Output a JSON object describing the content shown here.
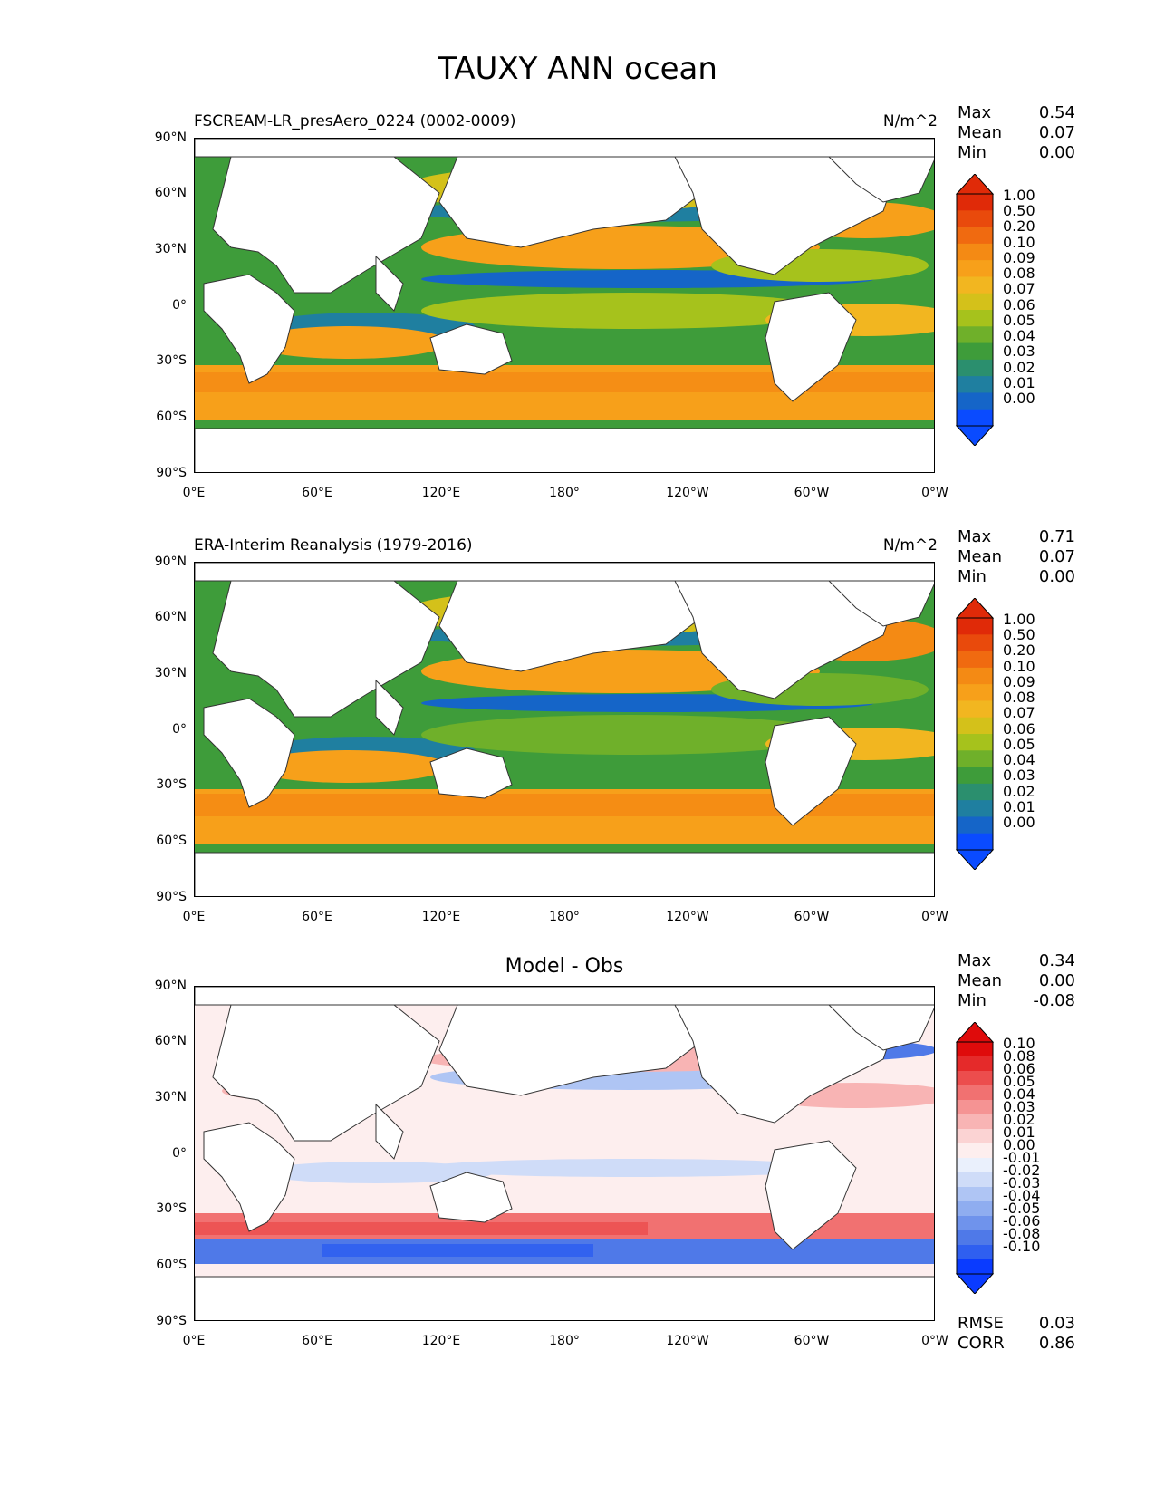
{
  "figure_title": "TAUXY ANN ocean",
  "axes": {
    "lat_ticks": [
      "90°N",
      "60°N",
      "30°N",
      "0°",
      "30°S",
      "60°S",
      "90°S"
    ],
    "lon_ticks": [
      "0°E",
      "60°E",
      "120°E",
      "180°",
      "120°W",
      "60°W",
      "0°W"
    ]
  },
  "colors": {
    "abs_scale": [
      "#0a4bff",
      "#1565c8",
      "#1f7fa0",
      "#2b8f6e",
      "#3e9c3a",
      "#6fb02a",
      "#a6c21c",
      "#d4c11a",
      "#f2b620",
      "#f7a01a",
      "#f48a14",
      "#f06a10",
      "#e94a0c",
      "#e02a08"
    ],
    "diff_scale": [
      "#0a3bff",
      "#2f5ff0",
      "#4f79e8",
      "#6f93ec",
      "#8fadf0",
      "#afc5f4",
      "#cfdcf8",
      "#eaf0fc",
      "#fdeeee",
      "#fbd3d3",
      "#f8b4b4",
      "#f59393",
      "#f17171",
      "#ec4d4d",
      "#e52a2a",
      "#df0b0b"
    ],
    "land": "#ffffff",
    "coast": "#333333"
  },
  "panels": [
    {
      "title": "FSCREAM-LR_presAero_0224 (0002-0009)",
      "units": "N/m^2",
      "stats": {
        "max_label": "Max",
        "max": "0.54",
        "mean_label": "Mean",
        "mean": "0.07",
        "min_label": "Min",
        "min": "0.00"
      },
      "colorbar_levels": [
        "1.00",
        "0.50",
        "0.20",
        "0.10",
        "0.09",
        "0.08",
        "0.07",
        "0.06",
        "0.05",
        "0.04",
        "0.03",
        "0.02",
        "0.01",
        "0.00"
      ]
    },
    {
      "title": "ERA-Interim Reanalysis (1979-2016)",
      "units": "N/m^2",
      "stats": {
        "max_label": "Max",
        "max": "0.71",
        "mean_label": "Mean",
        "mean": "0.07",
        "min_label": "Min",
        "min": "0.00"
      },
      "colorbar_levels": [
        "1.00",
        "0.50",
        "0.20",
        "0.10",
        "0.09",
        "0.08",
        "0.07",
        "0.06",
        "0.05",
        "0.04",
        "0.03",
        "0.02",
        "0.01",
        "0.00"
      ]
    },
    {
      "title": "Model - Obs",
      "units": "",
      "stats": {
        "max_label": "Max",
        "max": "0.34",
        "mean_label": "Mean",
        "mean": "0.00",
        "min_label": "Min",
        "min": "-0.08"
      },
      "colorbar_levels": [
        "0.10",
        "0.08",
        "0.06",
        "0.05",
        "0.04",
        "0.03",
        "0.02",
        "0.01",
        "0.00",
        "-0.01",
        "-0.02",
        "-0.03",
        "-0.04",
        "-0.05",
        "-0.06",
        "-0.08",
        "-0.10"
      ],
      "rmse_label": "RMSE",
      "rmse": "0.03",
      "corr_label": "CORR",
      "corr": "0.86"
    }
  ]
}
